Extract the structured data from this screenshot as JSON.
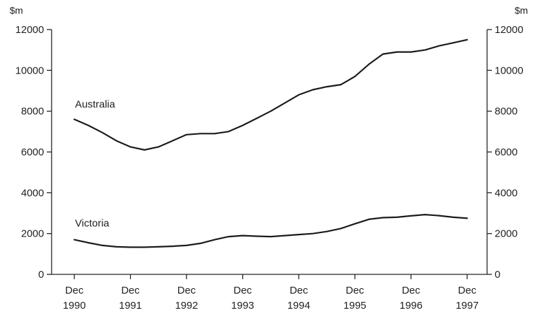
{
  "chart_data": {
    "type": "line",
    "title": "",
    "unit_left": "$m",
    "unit_right": "$m",
    "ylim": [
      0,
      12000
    ],
    "y_ticks": [
      0,
      2000,
      4000,
      6000,
      8000,
      10000,
      12000
    ],
    "x_tick_labels": [
      [
        "Dec",
        "1990"
      ],
      [
        "Dec",
        "1991"
      ],
      [
        "Dec",
        "1992"
      ],
      [
        "Dec",
        "1993"
      ],
      [
        "Dec",
        "1994"
      ],
      [
        "Dec",
        "1995"
      ],
      [
        "Dec",
        "1996"
      ],
      [
        "Dec",
        "1997"
      ]
    ],
    "x_quarters": [
      "1990-12",
      "1991-03",
      "1991-06",
      "1991-09",
      "1991-12",
      "1992-03",
      "1992-06",
      "1992-09",
      "1992-12",
      "1993-03",
      "1993-06",
      "1993-09",
      "1993-12",
      "1994-03",
      "1994-06",
      "1994-09",
      "1994-12",
      "1995-03",
      "1995-06",
      "1995-09",
      "1995-12",
      "1996-03",
      "1996-06",
      "1996-09",
      "1996-12",
      "1997-03",
      "1997-06",
      "1997-09",
      "1997-12"
    ],
    "series": [
      {
        "name": "Australia",
        "values": [
          7600,
          7300,
          6950,
          6550,
          6250,
          6100,
          6250,
          6550,
          6850,
          6900,
          6900,
          7000,
          7300,
          7650,
          8000,
          8400,
          8800,
          9050,
          9200,
          9300,
          9700,
          10300,
          10800,
          10900,
          10900,
          11000,
          11200,
          11350,
          11500
        ]
      },
      {
        "name": "Victoria",
        "values": [
          1700,
          1550,
          1420,
          1350,
          1330,
          1330,
          1350,
          1380,
          1420,
          1520,
          1700,
          1850,
          1900,
          1870,
          1850,
          1900,
          1950,
          2000,
          2100,
          2250,
          2480,
          2700,
          2780,
          2800,
          2870,
          2930,
          2880,
          2800,
          2750
        ]
      }
    ]
  }
}
